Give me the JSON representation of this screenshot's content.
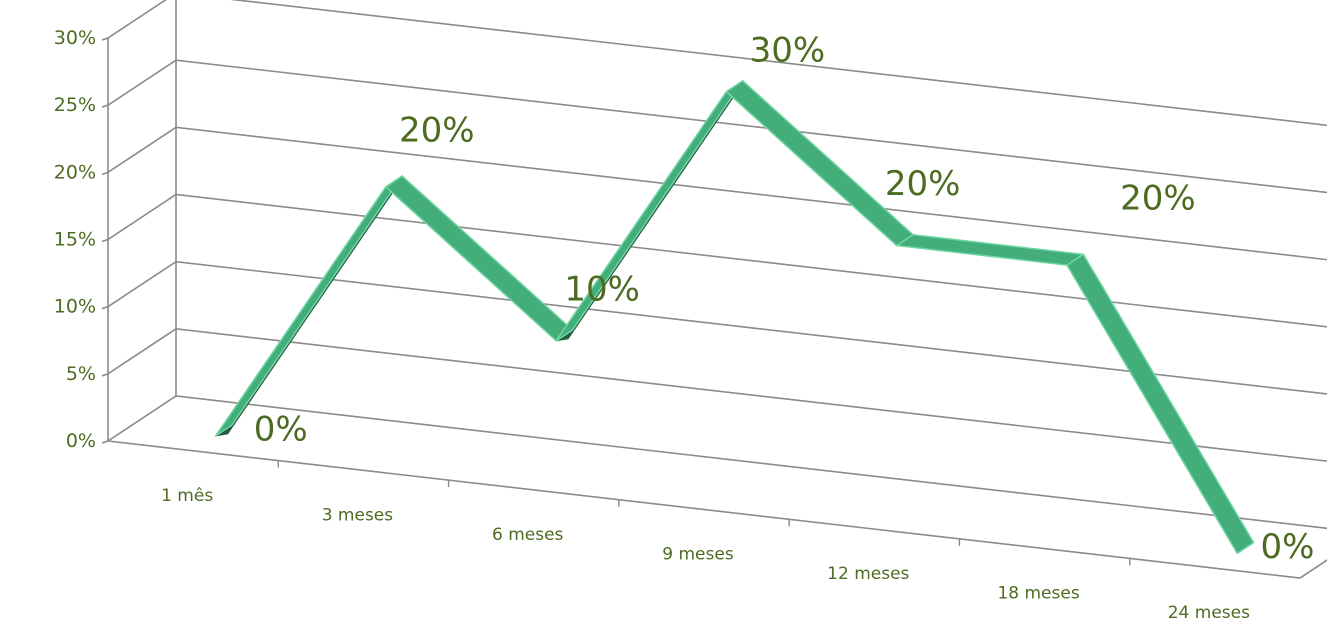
{
  "chart_data": {
    "type": "line",
    "categories": [
      "1 mês",
      "3 meses",
      "6 meses",
      "9 meses",
      "12 meses",
      "18 meses",
      "24 meses"
    ],
    "values": [
      0,
      20,
      10,
      30,
      20,
      20,
      0
    ],
    "data_labels": [
      "0%",
      "20%",
      "10%",
      "30%",
      "20%",
      "20%",
      "0%"
    ],
    "y_ticks": [
      "0%",
      "5%",
      "10%",
      "15%",
      "20%",
      "25%",
      "30%"
    ],
    "ylim": [
      0,
      30
    ],
    "grid": true,
    "style": "3d-ribbon",
    "colors": {
      "ribbon_top": "#43ae7a",
      "ribbon_side": "#245c3f",
      "ribbon_edge": "#6fd6a3",
      "gridline": "#8a8a8a",
      "text": "#4e6b22"
    }
  }
}
